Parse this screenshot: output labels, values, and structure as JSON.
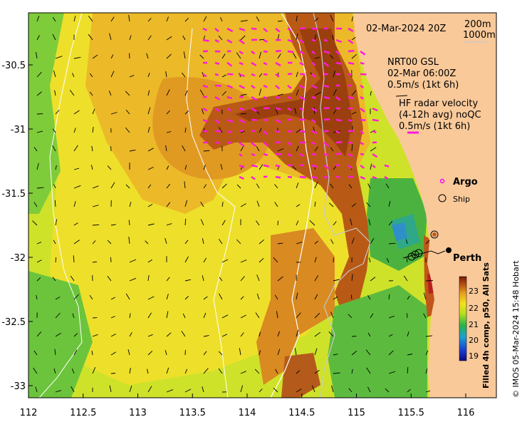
{
  "map": {
    "date_title": "02-Mar-2024 20Z",
    "isobath_labels": [
      "200m",
      "1000m"
    ],
    "nrt_lines": [
      "NRT00 GSL",
      "02-Mar 06:00Z",
      "0.5m/s (1kt 6h)"
    ],
    "hf_lines": [
      "HF radar velocity",
      "(4-12h avg) noQC",
      "0.5m/s (1kt 6h)"
    ],
    "argo_label": "Argo",
    "ship_label": "Ship",
    "city_label": "Perth",
    "copyright": "© IMOS 05-Mar-2024 15:48 Hobart",
    "colorbar_title": "Filled 4h comp, p50, All Sats",
    "colorbar_ticks": [
      "23",
      "22",
      "21",
      "20",
      "19"
    ],
    "x_ticks": [
      "112",
      "112.5",
      "113",
      "113.5",
      "114",
      "114.5",
      "115",
      "115.5",
      "116"
    ],
    "y_ticks": [
      "-30.5",
      "-31",
      "-31.5",
      "-32",
      "-32.5",
      "-33"
    ],
    "colors": {
      "land": "#f9c99a",
      "hf_arrow": "#ff1ad9",
      "argo": "#ff00ff"
    }
  }
}
